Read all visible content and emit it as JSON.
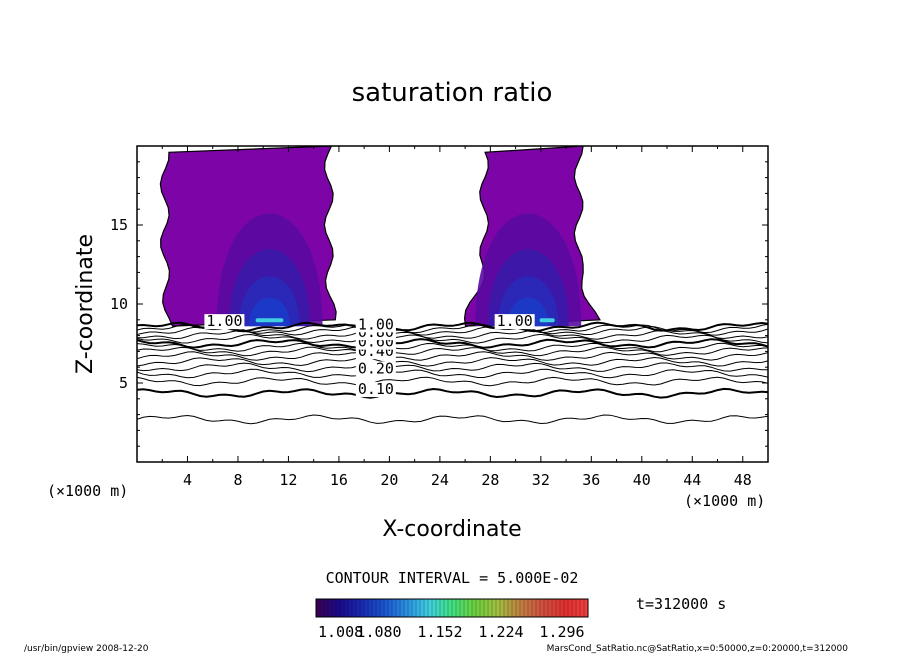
{
  "chart_data": {
    "type": "contour",
    "title": "saturation ratio",
    "xlabel": "X-coordinate",
    "ylabel": "Z-coordinate",
    "x_unit_left": "(×1000 m)",
    "x_unit_right": "(×1000 m)",
    "xlim": [
      0,
      50
    ],
    "ylim": [
      0,
      20
    ],
    "xticks": [
      4,
      8,
      12,
      16,
      20,
      24,
      28,
      32,
      36,
      40,
      44,
      48
    ],
    "yticks": [
      5,
      10,
      15
    ],
    "contour_interval_text": "CONTOUR INTERVAL = 5.000E-02",
    "time_text": "t=312000 s",
    "contour_labels": [
      {
        "text": "0.10",
        "x": 17.5,
        "z": 4.3
      },
      {
        "text": "0.20",
        "x": 17.5,
        "z": 5.6
      },
      {
        "text": "0.40",
        "x": 17.5,
        "z": 6.7
      },
      {
        "text": "0.60",
        "x": 17.5,
        "z": 7.3
      },
      {
        "text": "0.80",
        "x": 17.5,
        "z": 7.9
      },
      {
        "text": "1.00",
        "x": 17.5,
        "z": 8.4
      },
      {
        "text": "1.00",
        "x": 5.5,
        "z": 8.6
      },
      {
        "text": "1.00",
        "x": 28.5,
        "z": 8.6
      }
    ],
    "contour_levels": [
      {
        "level": 0.05,
        "base": 2.7,
        "bold": false
      },
      {
        "level": 0.1,
        "base": 4.35,
        "bold": true
      },
      {
        "level": 0.15,
        "base": 5.1,
        "bold": false
      },
      {
        "level": 0.2,
        "base": 5.6,
        "bold": false
      },
      {
        "level": 0.25,
        "base": 6.0,
        "bold": false
      },
      {
        "level": 0.3,
        "base": 6.35,
        "bold": false
      },
      {
        "level": 0.35,
        "base": 6.7,
        "bold": false
      },
      {
        "level": 0.4,
        "base": 7.0,
        "bold": false
      },
      {
        "level": 0.45,
        "base": 7.25,
        "bold": false
      },
      {
        "level": 0.5,
        "base": 7.5,
        "bold": true
      },
      {
        "level": 0.6,
        "base": 7.8,
        "bold": false
      },
      {
        "level": 0.7,
        "base": 8.05,
        "bold": false
      },
      {
        "level": 0.8,
        "base": 8.3,
        "bold": false
      },
      {
        "level": 0.9,
        "base": 8.45,
        "bold": false
      },
      {
        "level": 1.0,
        "base": 8.55,
        "bold": true
      }
    ],
    "supersaturated_regions": [
      {
        "x_left_bottom": 2.5,
        "x_right_bottom": 15.5,
        "x_left_top": 2.2,
        "x_right_top": 15.2,
        "z_bottom": 8.6,
        "z_top": 20,
        "core_x": 10.0,
        "core_z": 8.9,
        "core_x2": 11.0
      },
      {
        "x_left_bottom": 26.0,
        "x_right_bottom": 36.5,
        "x_left_top": 27.5,
        "x_right_top": 35.0,
        "z_bottom": 8.6,
        "z_top": 20,
        "core_x": 29.5,
        "core_z": 8.9,
        "core_x2": 32.5
      }
    ],
    "colorbar": {
      "ticks": [
        "1.008",
        "1.080",
        "1.152",
        "1.224",
        "1.296"
      ],
      "colors": [
        "#3a0050",
        "#1a0a8a",
        "#1a2ab0",
        "#1a55d0",
        "#2a90e0",
        "#40d0e0",
        "#40e080",
        "#6ad040",
        "#a0c040",
        "#c08040",
        "#d05040",
        "#e03030",
        "#f04040"
      ]
    },
    "field_colors": {
      "base": "#7d05a8",
      "level2": "#5a0aa0",
      "level3": "#3a1aa8",
      "level4": "#2a2ab8",
      "level5": "#1a3ac8",
      "core": "#40d0e0"
    }
  },
  "footer": {
    "left": "/usr/bin/gpview   2008-12-20",
    "right": "MarsCond_SatRatio.nc@SatRatio,x=0:50000,z=0:20000,t=312000"
  }
}
